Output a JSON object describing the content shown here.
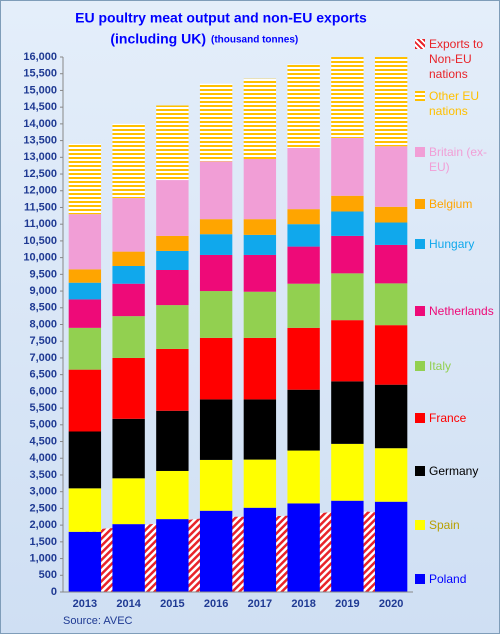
{
  "chart_data": {
    "type": "stacked-bar",
    "title": "EU poultry meat output and non-EU exports",
    "subtitle": "(including UK)",
    "unit_note": "(thousand tonnes)",
    "source": "Source: AVEC",
    "categories": [
      "2013",
      "2014",
      "2015",
      "2016",
      "2017",
      "2018",
      "2019",
      "2020"
    ],
    "series": [
      {
        "name": "Poland",
        "color": "#0000ff",
        "values": [
          1800,
          2030,
          2180,
          2430,
          2520,
          2650,
          2730,
          2700
        ]
      },
      {
        "name": "Spain",
        "color": "#ffff00",
        "values": [
          1300,
          1370,
          1440,
          1520,
          1440,
          1580,
          1700,
          1600
        ]
      },
      {
        "name": "Germany",
        "color": "#000000",
        "values": [
          1700,
          1780,
          1800,
          1810,
          1800,
          1820,
          1870,
          1900
        ]
      },
      {
        "name": "France",
        "color": "#ff0000",
        "values": [
          1850,
          1820,
          1850,
          1840,
          1840,
          1850,
          1830,
          1780
        ]
      },
      {
        "name": "Italy",
        "color": "#92d050",
        "values": [
          1250,
          1250,
          1310,
          1400,
          1380,
          1320,
          1400,
          1250
        ]
      },
      {
        "name": "Netherlands",
        "color": "#ee0a78",
        "values": [
          850,
          970,
          1050,
          1080,
          1100,
          1110,
          1120,
          1150
        ]
      },
      {
        "name": "Hungary",
        "color": "#10a8ec",
        "values": [
          500,
          530,
          570,
          620,
          600,
          670,
          730,
          670
        ]
      },
      {
        "name": "Belgium",
        "color": "#ffa500",
        "values": [
          400,
          430,
          450,
          450,
          470,
          450,
          470,
          470
        ]
      },
      {
        "name": "Britain (ex-EU)",
        "color": "#f19ed6",
        "values": [
          1650,
          1600,
          1670,
          1730,
          1800,
          1830,
          1730,
          1810
        ]
      },
      {
        "name": "Other EU nations",
        "color": "#ffc000",
        "hatch": "horizontal",
        "values": [
          2100,
          2220,
          2230,
          2320,
          2400,
          2500,
          2420,
          2670
        ]
      }
    ],
    "area_series": {
      "name": "Exports to Non-EU nations",
      "color": "#e8242a",
      "hatch": "diagonal",
      "values": [
        1850,
        1950,
        2100,
        2250,
        2250,
        2300,
        2450,
        2350
      ]
    },
    "ylim": [
      0,
      16000
    ],
    "yticks": [
      0,
      500,
      {
        "value": 1000,
        "label": "1,000"
      },
      {
        "value": 1500,
        "label": "1,500"
      },
      {
        "value": 2000,
        "label": "2,000"
      },
      {
        "value": 2500,
        "label": "2,500"
      },
      {
        "value": 3000,
        "label": "3,000"
      },
      {
        "value": 3500,
        "label": "3,500"
      },
      {
        "value": 4000,
        "label": "4,000"
      },
      {
        "value": 4500,
        "label": "4,500"
      },
      {
        "value": 5000,
        "label": "5,000"
      },
      {
        "value": 5500,
        "label": "5,500"
      },
      {
        "value": 6000,
        "label": "6,000"
      },
      {
        "value": 6500,
        "label": "6,500"
      },
      {
        "value": 7000,
        "label": "7,000"
      },
      {
        "value": 7500,
        "label": "7,500"
      },
      {
        "value": 8000,
        "label": "8,000"
      },
      {
        "value": 8500,
        "label": "8,500"
      },
      {
        "value": 9000,
        "label": "9,000"
      },
      {
        "value": 9500,
        "label": "9,500"
      },
      {
        "value": 10000,
        "label": "10,000"
      },
      {
        "value": 10500,
        "label": "10,500"
      },
      {
        "value": 11000,
        "label": "11,000"
      },
      {
        "value": 11500,
        "label": "11,500"
      },
      {
        "value": 12000,
        "label": "12,000"
      },
      {
        "value": 12500,
        "label": "12,500"
      },
      {
        "value": 13000,
        "label": "13,000"
      },
      {
        "value": 13500,
        "label": "13,500"
      },
      {
        "value": 14000,
        "label": "14,000"
      },
      {
        "value": 14500,
        "label": "14,500"
      },
      {
        "value": 15000,
        "label": "15,000"
      },
      {
        "value": 15500,
        "label": "15,500"
      },
      {
        "value": 16000,
        "label": "16,000"
      }
    ],
    "grid": false,
    "legend": "right"
  }
}
